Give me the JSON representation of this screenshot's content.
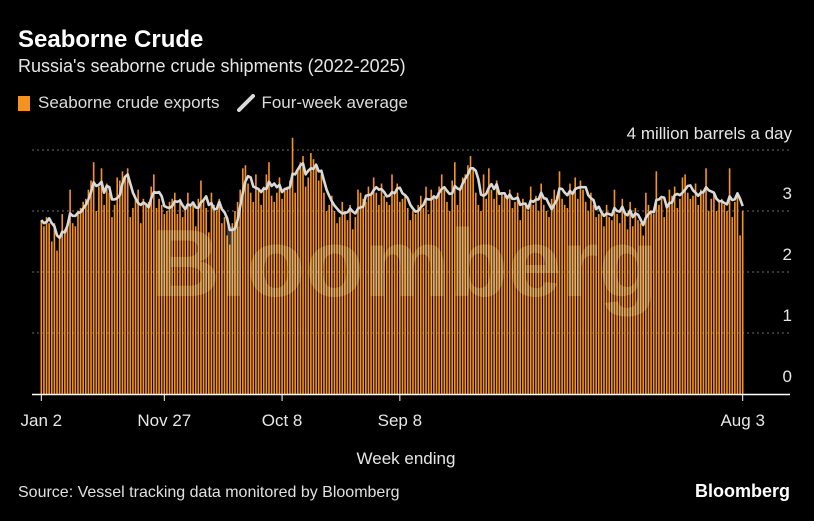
{
  "header": {
    "title": "Seaborne Crude",
    "subtitle": "Russia's seaborne crude shipments (2022-2025)"
  },
  "legend": {
    "bars_label": "Seaborne crude exports",
    "line_label": "Four-week average"
  },
  "footer": {
    "source": "Source: Vessel tracking data monitored by Bloomberg",
    "brand": "Bloomberg"
  },
  "watermark": "Bloomberg",
  "colors": {
    "bar": "#f6921e",
    "line": "#d9d9d9",
    "background": "#000000",
    "grid": "#6e6e6e"
  },
  "chart_data": {
    "type": "bar",
    "title": "Seaborne Crude",
    "subtitle": "Russia's seaborne crude shipments (2022-2025)",
    "xlabel": "Week ending",
    "ylabel": "",
    "unit_label": "4 million barrels a day",
    "ylim": [
      0,
      4
    ],
    "yticks": [
      "0",
      "1",
      "2",
      "3"
    ],
    "x_tick_labels": [
      "Jan 2",
      "Nov 27",
      "Oct 8",
      "Sep 8",
      "Aug 3"
    ],
    "grid": true,
    "legend_position": "top-left",
    "series": [
      {
        "name": "Seaborne crude exports",
        "kind": "bar",
        "values": [
          2.85,
          2.75,
          2.9,
          2.8,
          2.5,
          2.8,
          2.35,
          2.6,
          2.95,
          2.7,
          2.8,
          3.35,
          2.8,
          2.75,
          3.0,
          3.05,
          3.15,
          3.2,
          3.35,
          3.5,
          3.8,
          3.0,
          3.4,
          3.7,
          3.1,
          3.45,
          3.3,
          2.9,
          3.1,
          3.55,
          3.5,
          3.65,
          3.55,
          3.7,
          2.9,
          3.05,
          3.2,
          3.35,
          2.8,
          3.2,
          3.1,
          3.15,
          3.4,
          3.6,
          3.05,
          3.2,
          3.1,
          2.95,
          3.0,
          3.15,
          3.2,
          3.3,
          2.95,
          3.2,
          2.9,
          3.05,
          3.3,
          3.1,
          3.1,
          2.75,
          3.2,
          3.5,
          3.2,
          3.05,
          2.65,
          3.3,
          3.1,
          3.0,
          3.2,
          2.8,
          2.9,
          2.6,
          2.45,
          2.8,
          3.0,
          3.15,
          3.35,
          3.7,
          3.75,
          3.45,
          3.3,
          3.15,
          3.6,
          3.35,
          3.1,
          3.4,
          3.6,
          3.8,
          3.25,
          3.15,
          3.3,
          3.55,
          3.2,
          3.35,
          3.4,
          3.5,
          4.2,
          3.3,
          3.7,
          3.8,
          3.9,
          3.4,
          3.55,
          3.95,
          3.85,
          3.7,
          3.5,
          3.6,
          3.3,
          3.0,
          3.1,
          3.25,
          3.0,
          2.8,
          2.9,
          3.15,
          3.0,
          2.85,
          3.1,
          2.7,
          2.9,
          3.35,
          3.3,
          3.2,
          3.15,
          3.4,
          3.25,
          3.55,
          3.3,
          3.1,
          3.45,
          3.25,
          3.15,
          3.1,
          3.6,
          3.3,
          3.45,
          3.15,
          3.2,
          3.25,
          3.05,
          2.85,
          3.0,
          2.95,
          3.1,
          3.25,
          3.05,
          3.4,
          2.95,
          3.35,
          3.25,
          3.2,
          3.4,
          3.6,
          3.35,
          3.15,
          3.0,
          3.5,
          3.8,
          3.1,
          3.35,
          3.55,
          3.6,
          3.75,
          3.9,
          3.7,
          3.3,
          3.1,
          3.0,
          3.6,
          3.2,
          3.7,
          3.35,
          3.2,
          3.5,
          3.1,
          3.3,
          3.25,
          3.2,
          3.35,
          3.05,
          3.15,
          3.3,
          2.85,
          3.2,
          3.1,
          3.0,
          3.4,
          3.1,
          3.25,
          3.0,
          3.45,
          3.1,
          3.0,
          2.9,
          3.2,
          3.35,
          3.25,
          3.65,
          3.2,
          3.1,
          3.05,
          3.45,
          3.3,
          3.55,
          3.2,
          3.5,
          3.35,
          3.15,
          3.0,
          3.3,
          3.1,
          2.9,
          2.95,
          3.0,
          2.75,
          3.1,
          2.9,
          2.85,
          3.35,
          2.95,
          2.8,
          3.2,
          3.0,
          2.7,
          3.15,
          2.75,
          3.05,
          2.85,
          2.8,
          2.6,
          3.3,
          3.1,
          3.0,
          2.95,
          3.65,
          3.1,
          3.2,
          2.9,
          3.05,
          3.35,
          3.25,
          3.4,
          3.05,
          3.2,
          3.55,
          3.6,
          3.3,
          3.2,
          3.25,
          3.45,
          3.1,
          3.35,
          3.3,
          3.7,
          3.0,
          3.2,
          3.3,
          3.0,
          3.15,
          3.2,
          3.1,
          3.0,
          3.7,
          2.9,
          3.15,
          3.3,
          2.6,
          3.0
        ],
        "color": "#f6921e"
      },
      {
        "name": "Four-week average",
        "kind": "line",
        "values": [
          2.85,
          2.8,
          2.82,
          2.88,
          2.8,
          2.75,
          2.6,
          2.56,
          2.66,
          2.65,
          2.76,
          2.96,
          2.92,
          2.92,
          2.97,
          2.98,
          3.04,
          3.1,
          3.19,
          3.31,
          3.47,
          3.41,
          3.43,
          3.48,
          3.3,
          3.41,
          3.39,
          3.19,
          3.19,
          3.21,
          3.26,
          3.45,
          3.56,
          3.6,
          3.45,
          3.3,
          3.21,
          3.13,
          3.1,
          3.14,
          3.11,
          3.06,
          3.21,
          3.31,
          3.3,
          3.31,
          3.24,
          3.08,
          3.06,
          3.05,
          3.08,
          3.16,
          3.15,
          3.17,
          3.09,
          3.03,
          3.11,
          3.09,
          3.14,
          3.06,
          3.05,
          3.14,
          3.18,
          3.24,
          3.1,
          3.13,
          3.03,
          3.03,
          3.15,
          3.03,
          2.98,
          2.88,
          2.69,
          2.69,
          2.71,
          2.85,
          3.08,
          3.3,
          3.49,
          3.57,
          3.55,
          3.4,
          3.38,
          3.36,
          3.31,
          3.37,
          3.36,
          3.48,
          3.41,
          3.45,
          3.39,
          3.43,
          3.31,
          3.36,
          3.37,
          3.39,
          3.61,
          3.6,
          3.68,
          3.75,
          3.78,
          3.6,
          3.66,
          3.7,
          3.69,
          3.76,
          3.65,
          3.66,
          3.5,
          3.35,
          3.25,
          3.16,
          3.09,
          3.04,
          2.99,
          2.96,
          2.97,
          2.98,
          3.04,
          2.99,
          2.96,
          3.04,
          3.06,
          3.07,
          3.25,
          3.26,
          3.27,
          3.34,
          3.39,
          3.35,
          3.36,
          3.31,
          3.24,
          3.25,
          3.31,
          3.29,
          3.37,
          3.38,
          3.29,
          3.26,
          3.21,
          3.1,
          3.04,
          2.99,
          3.0,
          3.06,
          3.1,
          3.2,
          3.19,
          3.19,
          3.24,
          3.21,
          3.3,
          3.36,
          3.39,
          3.33,
          3.28,
          3.29,
          3.41,
          3.37,
          3.35,
          3.45,
          3.53,
          3.6,
          3.7,
          3.7,
          3.66,
          3.52,
          3.27,
          3.25,
          3.28,
          3.38,
          3.44,
          3.36,
          3.44,
          3.28,
          3.29,
          3.29,
          3.21,
          3.27,
          3.2,
          3.2,
          3.22,
          3.1,
          3.12,
          3.12,
          3.04,
          3.17,
          3.15,
          3.19,
          3.19,
          3.3,
          3.21,
          3.2,
          3.11,
          3.03,
          3.11,
          3.18,
          3.37,
          3.36,
          3.3,
          3.26,
          3.33,
          3.28,
          3.36,
          3.38,
          3.39,
          3.39,
          3.39,
          3.26,
          3.21,
          3.18,
          3.03,
          3.07,
          2.98,
          2.92,
          2.96,
          2.95,
          2.93,
          3.05,
          3.0,
          2.99,
          3.07,
          2.96,
          2.93,
          3.01,
          2.9,
          2.96,
          2.94,
          2.86,
          2.77,
          2.89,
          2.95,
          2.99,
          2.98,
          3.18,
          3.19,
          3.23,
          3.22,
          3.06,
          3.13,
          3.14,
          3.26,
          3.28,
          3.26,
          3.3,
          3.35,
          3.41,
          3.42,
          3.34,
          3.3,
          3.25,
          3.3,
          3.31,
          3.39,
          3.34,
          3.32,
          3.3,
          3.2,
          3.16,
          3.16,
          3.13,
          3.11,
          3.24,
          3.18,
          3.19,
          3.29,
          3.2,
          3.08
        ]
      }
    ]
  }
}
